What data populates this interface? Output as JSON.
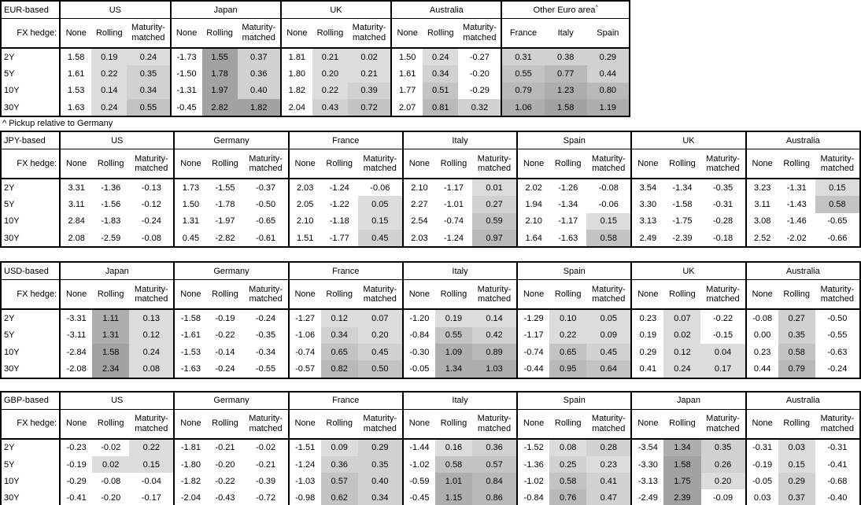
{
  "note": "^ Pickup relative to Germany",
  "row_labels": [
    "2Y",
    "5Y",
    "10Y",
    "30Y"
  ],
  "hedge_prompt": "FX hedge:",
  "hedge_cols": [
    "None",
    "Rolling",
    "Maturity-matched"
  ],
  "shading": {
    "thresholds": [
      0,
      0.25,
      0.5,
      0.75,
      1.0,
      1.5
    ],
    "colors": [
      "#dcdcdc",
      "#d1d1d1",
      "#c3c3c3",
      "#b9b9b9",
      "#aeaeae",
      "#a2a2a2"
    ],
    "unshaded": "#ffffff",
    "rule": "shade hedged (non-None) columns when value >= 0"
  },
  "tables": [
    {
      "id": "eur-based",
      "base_label": "EUR-based",
      "groups": [
        {
          "name": "US",
          "rows": [
            [
              "1.58",
              "0.19",
              "0.24"
            ],
            [
              "1.61",
              "0.22",
              "0.35"
            ],
            [
              "1.53",
              "0.14",
              "0.34"
            ],
            [
              "1.63",
              "0.24",
              "0.55"
            ]
          ]
        },
        {
          "name": "Japan",
          "rows": [
            [
              "-1.73",
              "1.55",
              "0.37"
            ],
            [
              "-1.50",
              "1.78",
              "0.36"
            ],
            [
              "-1.31",
              "1.97",
              "0.40"
            ],
            [
              "-0.45",
              "2.82",
              "1.82"
            ]
          ]
        },
        {
          "name": "UK",
          "rows": [
            [
              "1.81",
              "0.21",
              "0.02"
            ],
            [
              "1.80",
              "0.20",
              "0.21"
            ],
            [
              "1.82",
              "0.22",
              "0.39"
            ],
            [
              "2.04",
              "0.43",
              "0.72"
            ]
          ]
        },
        {
          "name": "Australia",
          "rows": [
            [
              "1.50",
              "0.24",
              "-0.27"
            ],
            [
              "1.61",
              "0.34",
              "-0.20"
            ],
            [
              "1.77",
              "0.51",
              "-0.29"
            ],
            [
              "2.07",
              "0.81",
              "0.32"
            ]
          ]
        },
        {
          "name": "Other Euro area",
          "superscript": "^",
          "cols": [
            "France",
            "Italy",
            "Spain"
          ],
          "rows": [
            [
              "0.31",
              "0.38",
              "0.29"
            ],
            [
              "0.55",
              "0.77",
              "0.44"
            ],
            [
              "0.79",
              "1.23",
              "0.80"
            ],
            [
              "1.06",
              "1.58",
              "1.19"
            ]
          ]
        }
      ]
    },
    {
      "id": "jpy-based",
      "base_label": "JPY-based",
      "groups": [
        {
          "name": "US",
          "rows": [
            [
              "3.31",
              "-1.36",
              "-0.13"
            ],
            [
              "3.11",
              "-1.56",
              "-0.12"
            ],
            [
              "2.84",
              "-1.83",
              "-0.24"
            ],
            [
              "2.08",
              "-2.59",
              "-0.08"
            ]
          ]
        },
        {
          "name": "Germany",
          "rows": [
            [
              "1.73",
              "-1.55",
              "-0.37"
            ],
            [
              "1.50",
              "-1.78",
              "-0.50"
            ],
            [
              "1.31",
              "-1.97",
              "-0.65"
            ],
            [
              "0.45",
              "-2.82",
              "-0.61"
            ]
          ]
        },
        {
          "name": "France",
          "rows": [
            [
              "2.03",
              "-1.24",
              "-0.06"
            ],
            [
              "2.05",
              "-1.22",
              "0.05"
            ],
            [
              "2.10",
              "-1.18",
              "0.15"
            ],
            [
              "1.51",
              "-1.77",
              "0.45"
            ]
          ]
        },
        {
          "name": "Italy",
          "rows": [
            [
              "2.10",
              "-1.17",
              "0.01"
            ],
            [
              "2.27",
              "-1.01",
              "0.27"
            ],
            [
              "2.54",
              "-0.74",
              "0.59"
            ],
            [
              "2.03",
              "-1.24",
              "0.97"
            ]
          ]
        },
        {
          "name": "Spain",
          "rows": [
            [
              "2.02",
              "-1.26",
              "-0.08"
            ],
            [
              "1.94",
              "-1.34",
              "-0.06"
            ],
            [
              "2.10",
              "-1.17",
              "0.15"
            ],
            [
              "1.64",
              "-1.63",
              "0.58"
            ]
          ]
        },
        {
          "name": "UK",
          "rows": [
            [
              "3.54",
              "-1.34",
              "-0.35"
            ],
            [
              "3.30",
              "-1.58",
              "-0.31"
            ],
            [
              "3.13",
              "-1.75",
              "-0.28"
            ],
            [
              "2.49",
              "-2.39",
              "-0.18"
            ]
          ]
        },
        {
          "name": "Australia",
          "rows": [
            [
              "3.23",
              "-1.31",
              "0.15"
            ],
            [
              "3.11",
              "-1.43",
              "0.58"
            ],
            [
              "3.08",
              "-1.46",
              "-0.65"
            ],
            [
              "2.52",
              "-2.02",
              "-0.66"
            ]
          ]
        }
      ]
    },
    {
      "id": "usd-based",
      "base_label": "USD-based",
      "groups": [
        {
          "name": "Japan",
          "rows": [
            [
              "-3.31",
              "1.11",
              "0.13"
            ],
            [
              "-3.11",
              "1.31",
              "0.12"
            ],
            [
              "-2.84",
              "1.58",
              "0.24"
            ],
            [
              "-2.08",
              "2.34",
              "0.08"
            ]
          ]
        },
        {
          "name": "Germany",
          "rows": [
            [
              "-1.58",
              "-0.19",
              "-0.24"
            ],
            [
              "-1.61",
              "-0.22",
              "-0.35"
            ],
            [
              "-1.53",
              "-0.14",
              "-0.34"
            ],
            [
              "-1.63",
              "-0.24",
              "-0.55"
            ]
          ]
        },
        {
          "name": "France",
          "rows": [
            [
              "-1.27",
              "0.12",
              "0.07"
            ],
            [
              "-1.06",
              "0.34",
              "0.20"
            ],
            [
              "-0.74",
              "0.65",
              "0.45"
            ],
            [
              "-0.57",
              "0.82",
              "0.50"
            ]
          ]
        },
        {
          "name": "Italy",
          "rows": [
            [
              "-1.20",
              "0.19",
              "0.14"
            ],
            [
              "-0.84",
              "0.55",
              "0.42"
            ],
            [
              "-0.30",
              "1.09",
              "0.89"
            ],
            [
              "-0.05",
              "1.34",
              "1.03"
            ]
          ]
        },
        {
          "name": "Spain",
          "rows": [
            [
              "-1.29",
              "0.10",
              "0.05"
            ],
            [
              "-1.17",
              "0.22",
              "0.09"
            ],
            [
              "-0.74",
              "0.65",
              "0.45"
            ],
            [
              "-0.44",
              "0.95",
              "0.64"
            ]
          ]
        },
        {
          "name": "UK",
          "rows": [
            [
              "0.23",
              "0.07",
              "-0.22"
            ],
            [
              "0.19",
              "0.02",
              "-0.15"
            ],
            [
              "0.29",
              "0.12",
              "0.04"
            ],
            [
              "0.41",
              "0.24",
              "0.17"
            ]
          ]
        },
        {
          "name": "Australia",
          "rows": [
            [
              "-0.08",
              "0.27",
              "-0.50"
            ],
            [
              "0.00",
              "0.35",
              "-0.55"
            ],
            [
              "0.23",
              "0.58",
              "-0.63"
            ],
            [
              "0.44",
              "0.79",
              "-0.24"
            ]
          ]
        }
      ]
    },
    {
      "id": "gbp-based",
      "base_label": "GBP-based",
      "groups": [
        {
          "name": "US",
          "rows": [
            [
              "-0.23",
              "-0.02",
              "0.22"
            ],
            [
              "-0.19",
              "0.02",
              "0.15"
            ],
            [
              "-0.29",
              "-0.08",
              "-0.04"
            ],
            [
              "-0.41",
              "-0.20",
              "-0.17"
            ]
          ]
        },
        {
          "name": "Germany",
          "rows": [
            [
              "-1.81",
              "-0.21",
              "-0.02"
            ],
            [
              "-1.80",
              "-0.20",
              "-0.21"
            ],
            [
              "-1.82",
              "-0.22",
              "-0.39"
            ],
            [
              "-2.04",
              "-0.43",
              "-0.72"
            ]
          ]
        },
        {
          "name": "France",
          "rows": [
            [
              "-1.51",
              "0.09",
              "0.29"
            ],
            [
              "-1.24",
              "0.36",
              "0.35"
            ],
            [
              "-1.03",
              "0.57",
              "0.40"
            ],
            [
              "-0.98",
              "0.62",
              "0.34"
            ]
          ]
        },
        {
          "name": "Italy",
          "rows": [
            [
              "-1.44",
              "0.16",
              "0.36"
            ],
            [
              "-1.02",
              "0.58",
              "0.57"
            ],
            [
              "-0.59",
              "1.01",
              "0.84"
            ],
            [
              "-0.45",
              "1.15",
              "0.86"
            ]
          ]
        },
        {
          "name": "Spain",
          "rows": [
            [
              "-1.52",
              "0.08",
              "0.28"
            ],
            [
              "-1.36",
              "0.25",
              "0.23"
            ],
            [
              "-1.02",
              "0.58",
              "0.41"
            ],
            [
              "-0.84",
              "0.76",
              "0.47"
            ]
          ]
        },
        {
          "name": "Japan",
          "rows": [
            [
              "-3.54",
              "1.34",
              "0.35"
            ],
            [
              "-3.30",
              "1.58",
              "0.26"
            ],
            [
              "-3.13",
              "1.75",
              "0.20"
            ],
            [
              "-2.49",
              "2.39",
              "-0.09"
            ]
          ]
        },
        {
          "name": "Australia",
          "rows": [
            [
              "-0.31",
              "0.03",
              "-0.31"
            ],
            [
              "-0.19",
              "0.15",
              "-0.41"
            ],
            [
              "-0.05",
              "0.29",
              "-0.68"
            ],
            [
              "0.03",
              "0.37",
              "-0.40"
            ]
          ]
        }
      ]
    }
  ]
}
